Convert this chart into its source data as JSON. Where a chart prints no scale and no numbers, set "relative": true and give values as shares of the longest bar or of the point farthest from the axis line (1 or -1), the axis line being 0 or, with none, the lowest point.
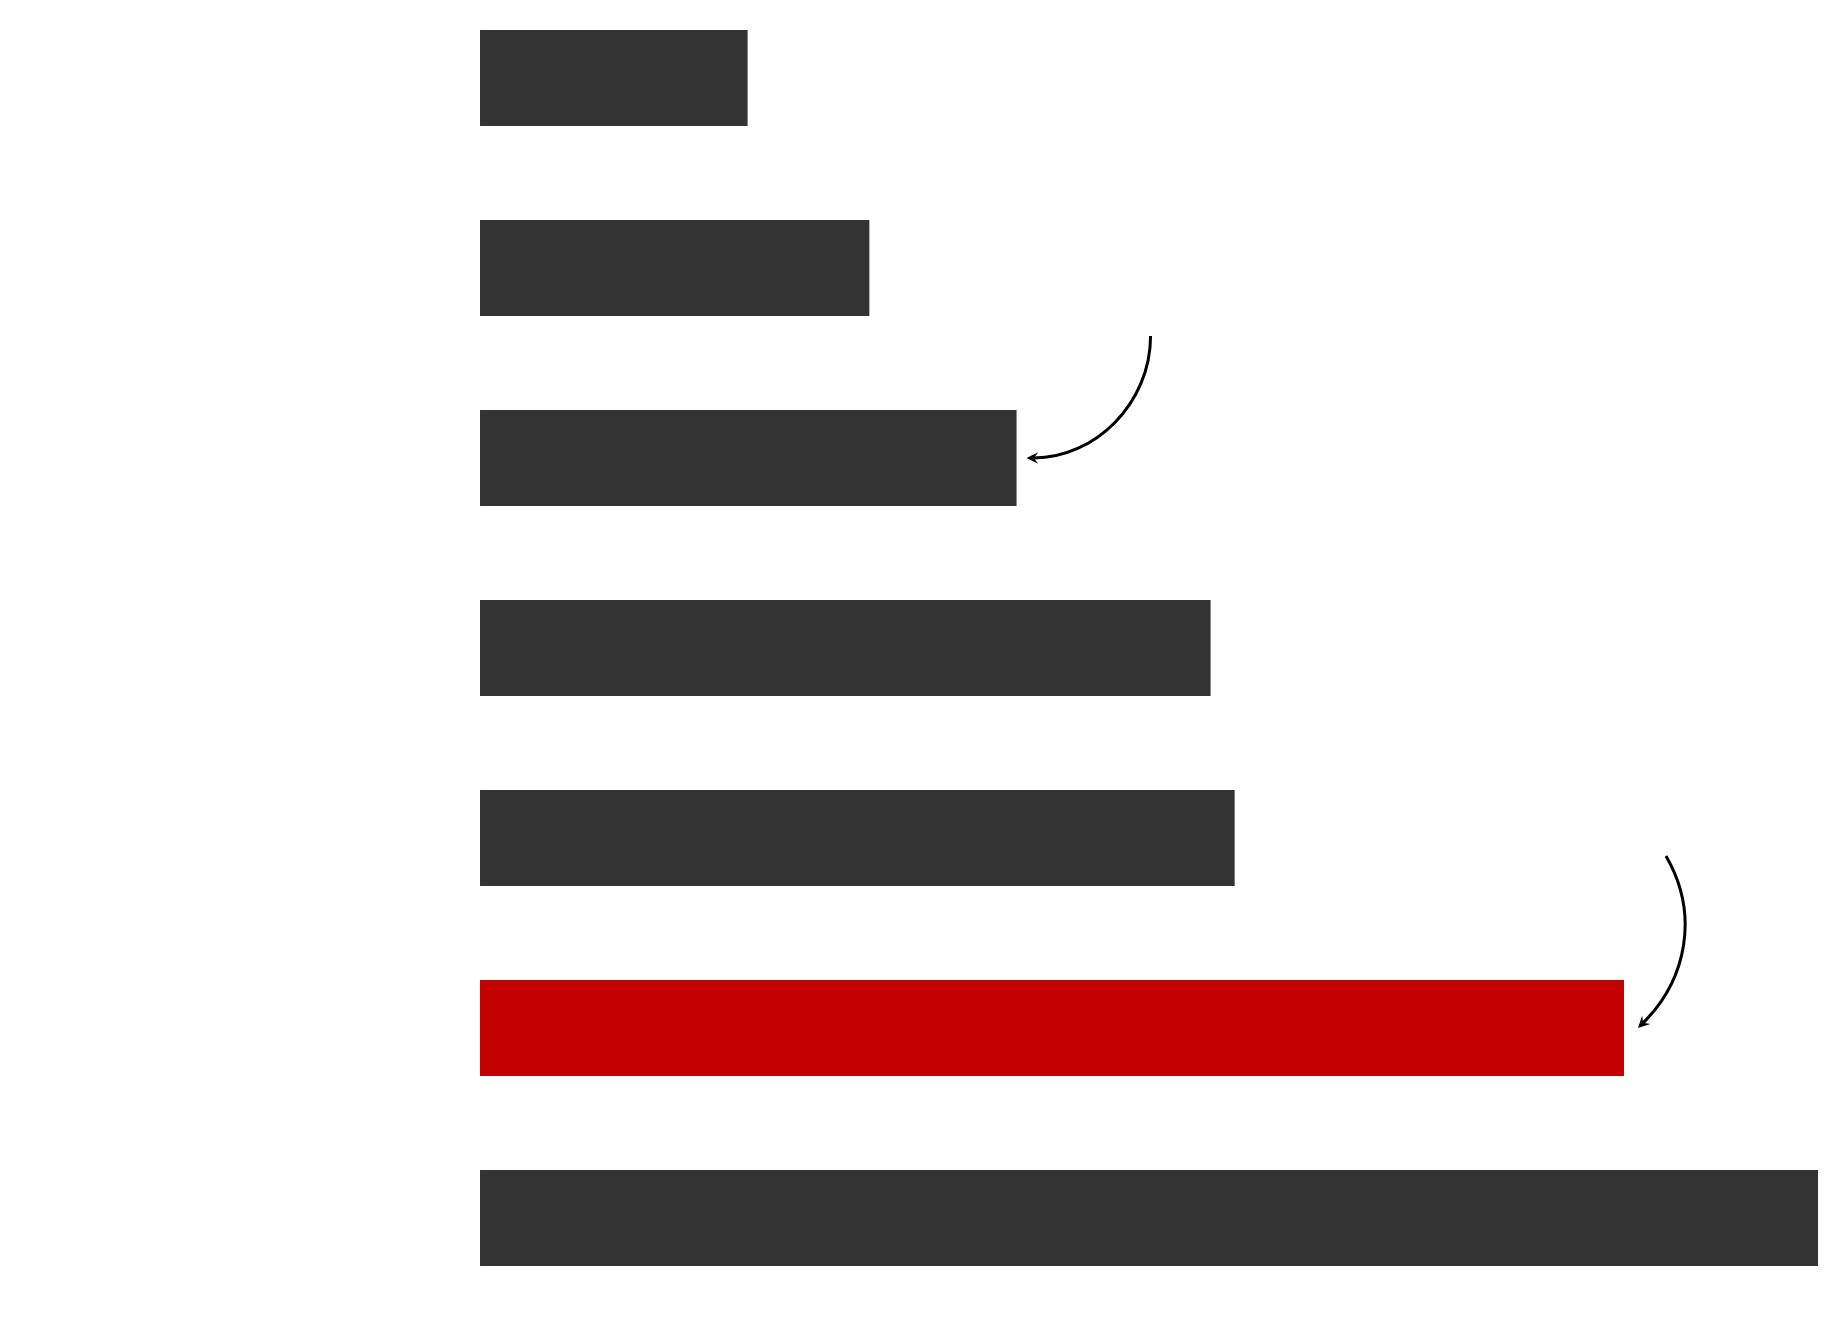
{
  "chart_data": {
    "type": "bar",
    "orientation": "horizontal",
    "relative": true,
    "categories": [
      null,
      null,
      null,
      null,
      null,
      null,
      null
    ],
    "values": [
      0.2,
      0.291,
      0.401,
      0.546,
      0.564,
      0.855,
      1
    ],
    "colors": [
      "#333333",
      "#333333",
      "#333333",
      "#333333",
      "#333333",
      "#c40000",
      "#333333"
    ]
  }
}
